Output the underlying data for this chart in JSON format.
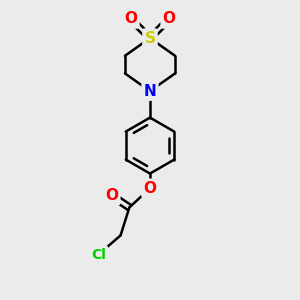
{
  "background_color": "#ebebeb",
  "atom_colors": {
    "S": "#cccc00",
    "N": "#0000ff",
    "O": "#ff0000",
    "Cl": "#00cc00",
    "C": "#000000"
  },
  "bond_color": "#000000",
  "bond_width": 1.8,
  "figsize": [
    3.0,
    3.0
  ],
  "dpi": 100
}
